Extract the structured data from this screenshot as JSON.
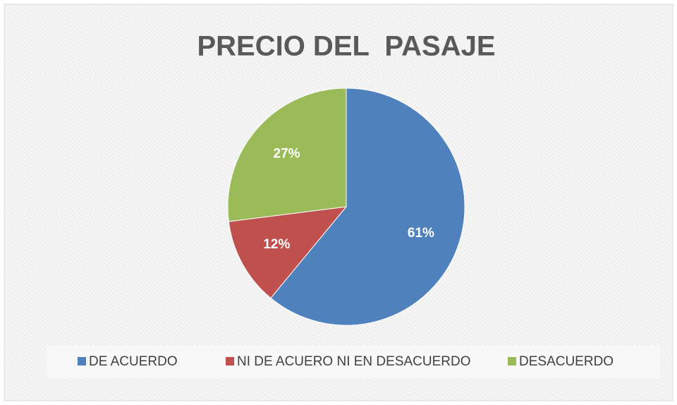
{
  "chart_data": {
    "type": "pie",
    "title": "PRECIO DEL  PASAJE",
    "categories": [
      "DE ACUERDO",
      "NI DE ACUERO NI EN DESACUERDO",
      "DESACUERDO"
    ],
    "values": [
      61,
      12,
      27
    ],
    "value_labels": [
      "61%",
      "12%",
      "27%"
    ],
    "colors": [
      "#4f81bd",
      "#c0504d",
      "#9bbb59"
    ],
    "legend": "bottom"
  }
}
